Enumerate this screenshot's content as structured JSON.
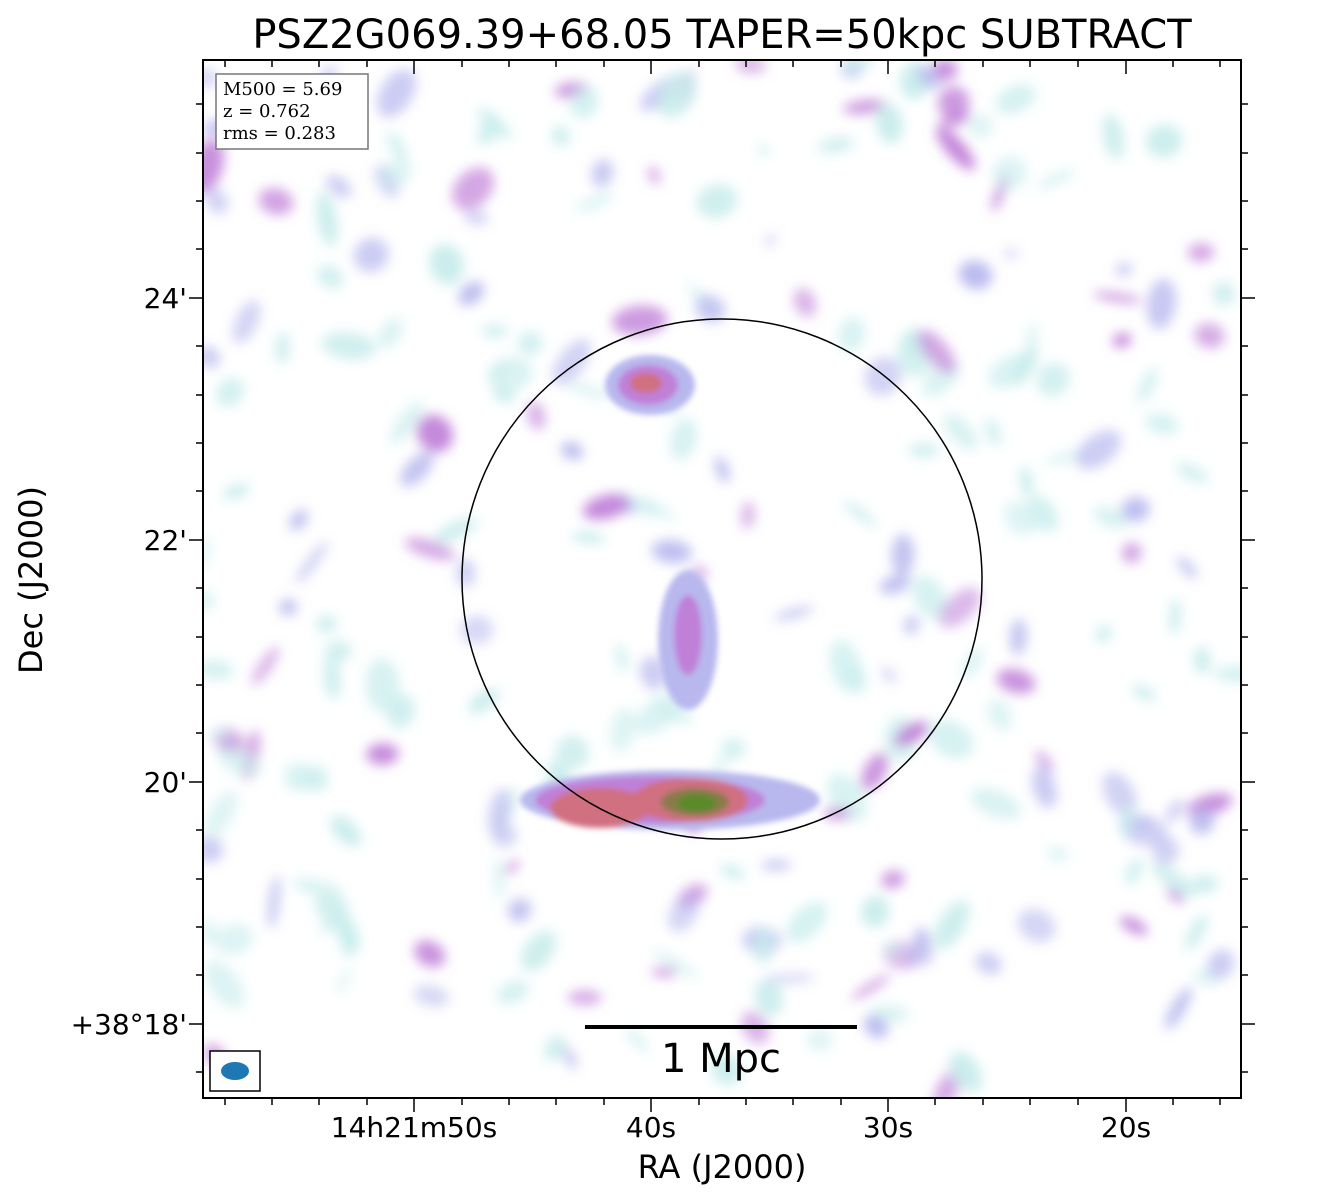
{
  "title": "PSZ2G069.39+68.05 TAPER=50kpc SUBTRACT",
  "info_box": {
    "m500": "M500 = 5.69",
    "z": "z = 0.762",
    "rms": "rms = 0.283"
  },
  "axes": {
    "xlabel": "RA (J2000)",
    "ylabel": "Dec (J2000)",
    "ra_ticks": [
      "14h21m50s",
      "40s",
      "30s",
      "20s"
    ],
    "dec_ticks": [
      "24'",
      "22'",
      "20'",
      "+38°18'"
    ]
  },
  "scale_bar": {
    "label": "1 Mpc"
  },
  "colors": {
    "low": "#c8ecec",
    "mid": "#b8b8ee",
    "high": "#c080d8",
    "peak": "#d07080",
    "core": "#5a8a2a",
    "beam": "#1f77b4"
  }
}
